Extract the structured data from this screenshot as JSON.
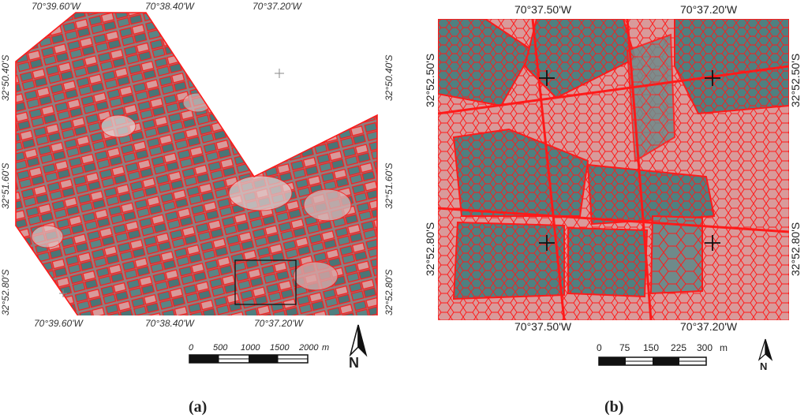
{
  "panels": [
    {
      "id": "a",
      "label": "(a)",
      "top_lon_labels": [
        "70°39.60'W",
        "70°38.40'W",
        "70°37.20'W"
      ],
      "bottom_lon_labels": [
        "70°39.60'W",
        "70°38.40'W",
        "70°37.20'W"
      ],
      "left_lat_labels": [
        "32°50.40'S",
        "32°51.60'S",
        "32°52.80'S"
      ],
      "right_lat_labels": [
        "32°50.40'S",
        "32°51.60'S",
        "32°52.80'S"
      ],
      "scale_ticks": [
        "0",
        "500",
        "1000",
        "1500",
        "2000"
      ],
      "scale_unit": "m",
      "north_label": "N"
    },
    {
      "id": "b",
      "label": "(b)",
      "top_lon_labels": [
        "70°37.50'W",
        "70°37.20'W"
      ],
      "bottom_lon_labels": [
        "70°37.50'W",
        "70°37.20'W"
      ],
      "left_lat_labels": [
        "32°52.50'S",
        "32°52.80'S"
      ],
      "right_lat_labels": [
        "32°52.50'S",
        "32°52.80'S"
      ],
      "scale_ticks": [
        "0",
        "75",
        "150",
        "225",
        "300"
      ],
      "scale_unit": "m",
      "north_label": "N"
    }
  ],
  "colors": {
    "segment_outline": "#ff1a1a",
    "field_dark": "#4f7f80",
    "field_pink": "#d89a9a",
    "background": "#ffffff"
  }
}
